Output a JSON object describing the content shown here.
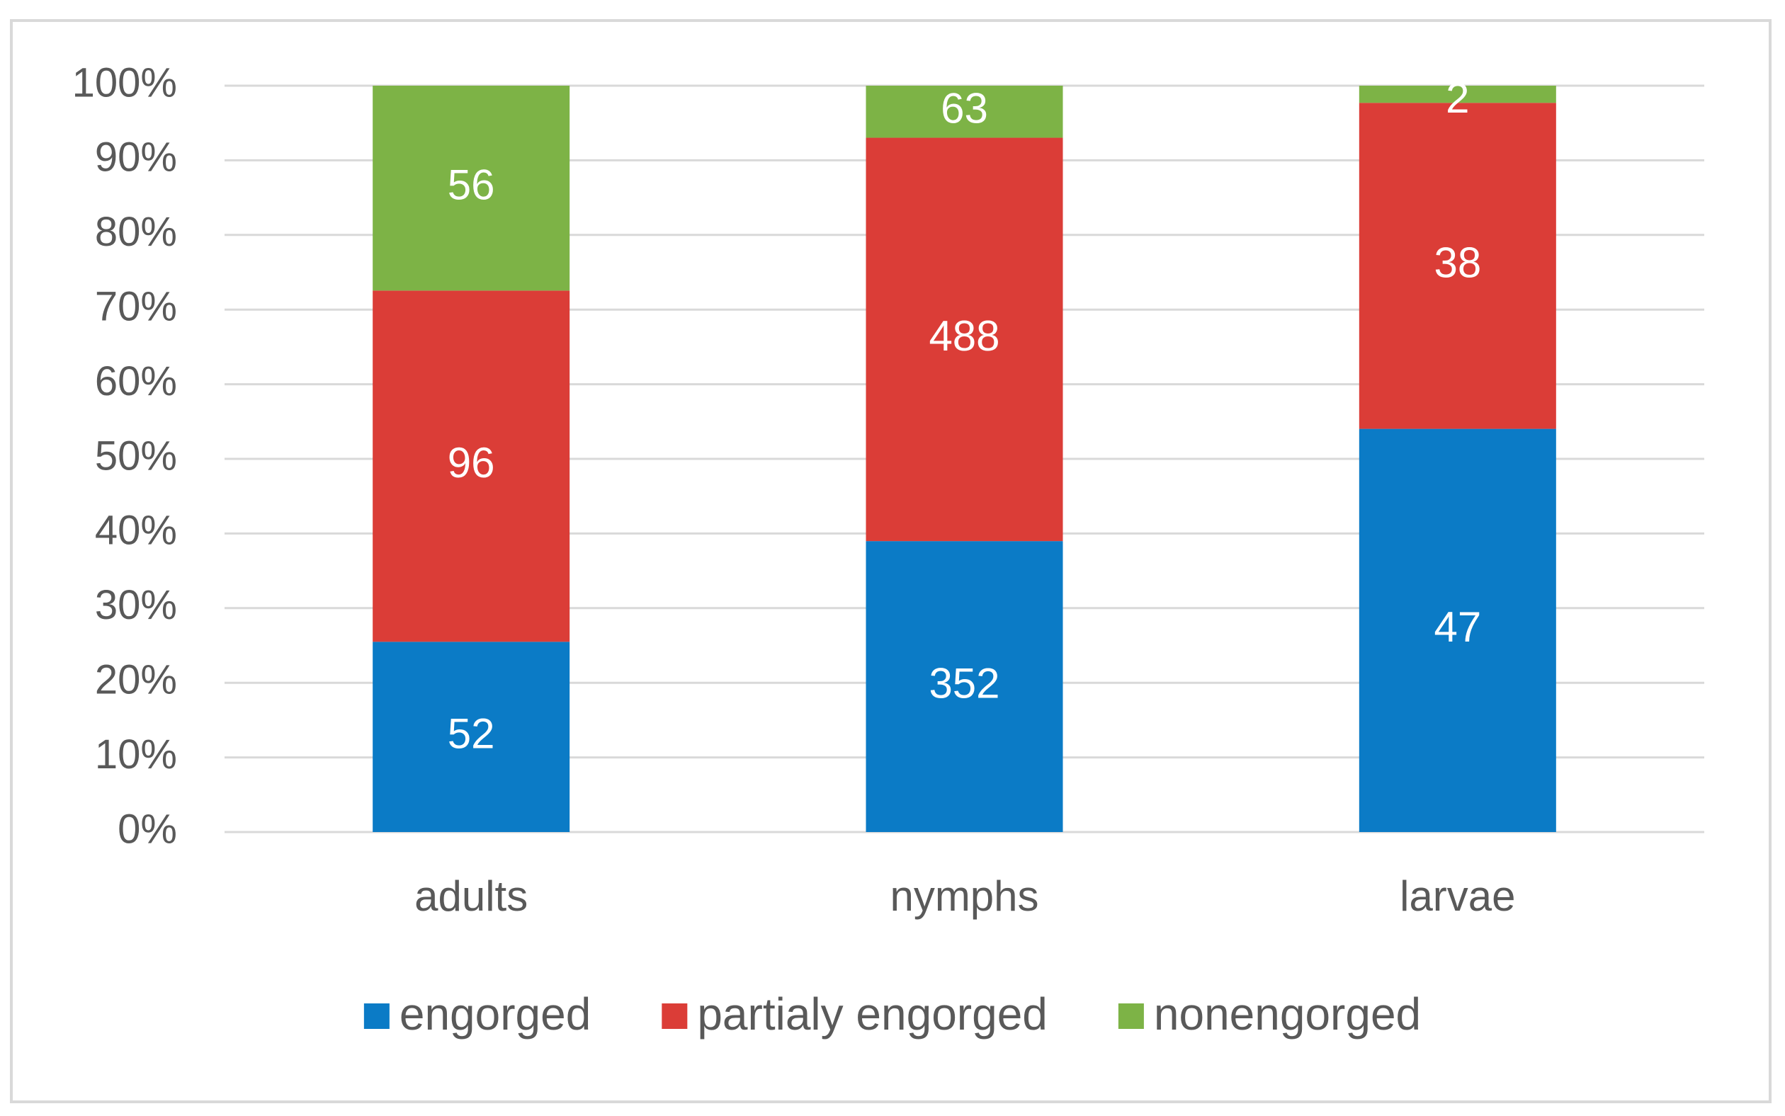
{
  "chart_data": {
    "type": "bar",
    "stack": "percent",
    "categories": [
      "adults",
      "nymphs",
      "larvae"
    ],
    "series": [
      {
        "name": "engorged",
        "color": "#0b7bc6",
        "values": [
          52,
          352,
          47
        ]
      },
      {
        "name": "partialy engorged",
        "color": "#db3d37",
        "values": [
          96,
          488,
          38
        ]
      },
      {
        "name": "nonengorged",
        "color": "#7db346",
        "values": [
          56,
          63,
          2
        ]
      }
    ],
    "ylim": [
      0,
      100
    ],
    "yticks": [
      {
        "value": 0,
        "label": "0%"
      },
      {
        "value": 10,
        "label": "10%"
      },
      {
        "value": 20,
        "label": "20%"
      },
      {
        "value": 30,
        "label": "30%"
      },
      {
        "value": 40,
        "label": "40%"
      },
      {
        "value": 50,
        "label": "50%"
      },
      {
        "value": 60,
        "label": "60%"
      },
      {
        "value": 70,
        "label": "70%"
      },
      {
        "value": 80,
        "label": "80%"
      },
      {
        "value": 90,
        "label": "90%"
      },
      {
        "value": 100,
        "label": "100%"
      }
    ],
    "grid": true,
    "legend": "bottom"
  }
}
